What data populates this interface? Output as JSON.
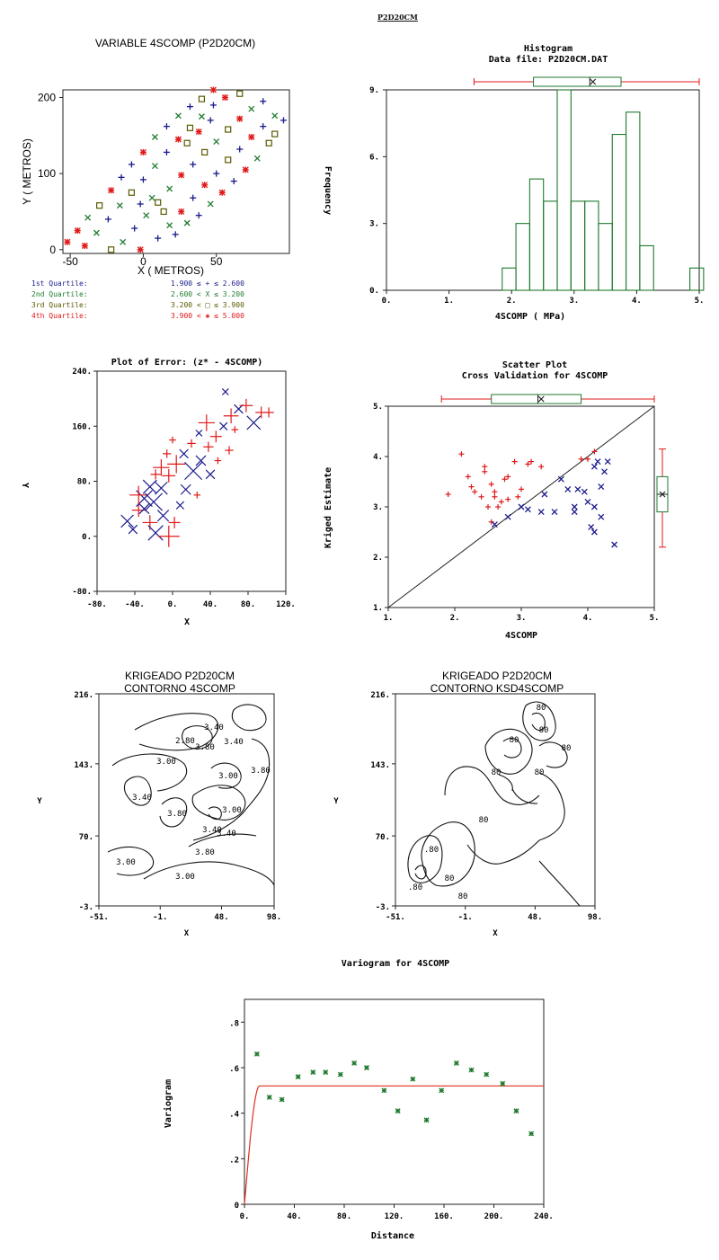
{
  "page_header": "P2D20CM",
  "chart_data": [
    {
      "id": "location_map",
      "type": "scatter",
      "title": "VARIABLE 4SCOMP (P2D20CM)",
      "xlabel": "X ( METROS)",
      "ylabel": "Y ( METROS)",
      "xlim": [
        -55,
        100
      ],
      "ylim": [
        -5,
        210
      ],
      "xticks": [
        "-50",
        "0",
        "50"
      ],
      "yticks": [
        "0",
        "100",
        "200"
      ],
      "legend": [
        {
          "label": "1st Quartile:",
          "range": "1.900 ≤ + ≤ 2.600",
          "color": "#1a1a8c",
          "marker": "+"
        },
        {
          "label": "2nd Quartile:",
          "range": "2.600 < X ≤ 3.200",
          "color": "#1f7a2e",
          "marker": "x"
        },
        {
          "label": "3rd Quartile:",
          "range": "3.200 < □ ≤ 3.900",
          "color": "#5a5a00",
          "marker": "square"
        },
        {
          "label": "4th Quartile:",
          "range": "3.900 < ✱ ≤ 5.000",
          "color": "#e01818",
          "marker": "star"
        }
      ],
      "points": [
        {
          "x": -52,
          "y": 10,
          "q": 4
        },
        {
          "x": -45,
          "y": 25,
          "q": 4
        },
        {
          "x": -38,
          "y": 42,
          "q": 2
        },
        {
          "x": -30,
          "y": 58,
          "q": 3
        },
        {
          "x": -22,
          "y": 78,
          "q": 4
        },
        {
          "x": -15,
          "y": 95,
          "q": 1
        },
        {
          "x": -8,
          "y": 112,
          "q": 1
        },
        {
          "x": 0,
          "y": 128,
          "q": 4
        },
        {
          "x": 8,
          "y": 148,
          "q": 2
        },
        {
          "x": 16,
          "y": 162,
          "q": 1
        },
        {
          "x": 24,
          "y": 176,
          "q": 2
        },
        {
          "x": 32,
          "y": 188,
          "q": 1
        },
        {
          "x": 40,
          "y": 198,
          "q": 3
        },
        {
          "x": 48,
          "y": 210,
          "q": 4
        },
        {
          "x": -40,
          "y": 5,
          "q": 4
        },
        {
          "x": -32,
          "y": 22,
          "q": 2
        },
        {
          "x": -24,
          "y": 40,
          "q": 1
        },
        {
          "x": -16,
          "y": 58,
          "q": 2
        },
        {
          "x": -8,
          "y": 75,
          "q": 3
        },
        {
          "x": 0,
          "y": 92,
          "q": 1
        },
        {
          "x": 8,
          "y": 110,
          "q": 2
        },
        {
          "x": 16,
          "y": 128,
          "q": 1
        },
        {
          "x": 24,
          "y": 145,
          "q": 4
        },
        {
          "x": 32,
          "y": 160,
          "q": 3
        },
        {
          "x": 40,
          "y": 175,
          "q": 2
        },
        {
          "x": 48,
          "y": 190,
          "q": 1
        },
        {
          "x": 56,
          "y": 200,
          "q": 4
        },
        {
          "x": 66,
          "y": 205,
          "q": 3
        },
        {
          "x": -22,
          "y": 0,
          "q": 3
        },
        {
          "x": -14,
          "y": 10,
          "q": 2
        },
        {
          "x": -6,
          "y": 28,
          "q": 1
        },
        {
          "x": 2,
          "y": 45,
          "q": 2
        },
        {
          "x": 10,
          "y": 62,
          "q": 3
        },
        {
          "x": 18,
          "y": 80,
          "q": 2
        },
        {
          "x": 26,
          "y": 98,
          "q": 4
        },
        {
          "x": 34,
          "y": 112,
          "q": 1
        },
        {
          "x": 42,
          "y": 128,
          "q": 3
        },
        {
          "x": 50,
          "y": 142,
          "q": 2
        },
        {
          "x": 58,
          "y": 158,
          "q": 3
        },
        {
          "x": 66,
          "y": 172,
          "q": 4
        },
        {
          "x": 74,
          "y": 185,
          "q": 2
        },
        {
          "x": 82,
          "y": 195,
          "q": 1
        },
        {
          "x": -2,
          "y": 0,
          "q": 4
        },
        {
          "x": 10,
          "y": 15,
          "q": 1
        },
        {
          "x": 18,
          "y": 32,
          "q": 2
        },
        {
          "x": 26,
          "y": 50,
          "q": 4
        },
        {
          "x": 34,
          "y": 68,
          "q": 1
        },
        {
          "x": 42,
          "y": 85,
          "q": 4
        },
        {
          "x": 50,
          "y": 100,
          "q": 1
        },
        {
          "x": 58,
          "y": 118,
          "q": 3
        },
        {
          "x": 66,
          "y": 132,
          "q": 1
        },
        {
          "x": 74,
          "y": 148,
          "q": 4
        },
        {
          "x": 82,
          "y": 162,
          "q": 1
        },
        {
          "x": 90,
          "y": 176,
          "q": 2
        },
        {
          "x": 90,
          "y": 152,
          "q": 3
        },
        {
          "x": 96,
          "y": 170,
          "q": 1
        },
        {
          "x": 86,
          "y": 140,
          "q": 3
        },
        {
          "x": 78,
          "y": 120,
          "q": 2
        },
        {
          "x": 70,
          "y": 105,
          "q": 4
        },
        {
          "x": 62,
          "y": 90,
          "q": 1
        },
        {
          "x": 54,
          "y": 75,
          "q": 4
        },
        {
          "x": 46,
          "y": 60,
          "q": 2
        },
        {
          "x": 38,
          "y": 45,
          "q": 1
        },
        {
          "x": 30,
          "y": 35,
          "q": 2
        },
        {
          "x": 22,
          "y": 20,
          "q": 1
        },
        {
          "x": 14,
          "y": 50,
          "q": 3
        },
        {
          "x": 6,
          "y": 68,
          "q": 2
        },
        {
          "x": -2,
          "y": 60,
          "q": 1
        },
        {
          "x": 30,
          "y": 140,
          "q": 3
        },
        {
          "x": 38,
          "y": 155,
          "q": 4
        },
        {
          "x": 46,
          "y": 170,
          "q": 1
        }
      ]
    },
    {
      "id": "histogram",
      "type": "bar",
      "title": "Histogram",
      "subtitle": "Data file: P2D20CM.DAT",
      "xlabel": "4SCOMP ( MPa)",
      "ylabel": "Frequency",
      "xlim": [
        0,
        5
      ],
      "ylim": [
        0,
        9
      ],
      "xticks": [
        "0.",
        "1.",
        "2.",
        "3.",
        "4.",
        "5."
      ],
      "yticks": [
        "0.",
        "3.",
        "6.",
        "9."
      ],
      "bin_width": 0.22,
      "bins": [
        {
          "x": 1.85,
          "count": 1
        },
        {
          "x": 2.07,
          "count": 3
        },
        {
          "x": 2.29,
          "count": 5
        },
        {
          "x": 2.51,
          "count": 4
        },
        {
          "x": 2.73,
          "count": 9
        },
        {
          "x": 2.95,
          "count": 4
        },
        {
          "x": 3.17,
          "count": 4
        },
        {
          "x": 3.39,
          "count": 3
        },
        {
          "x": 3.61,
          "count": 7
        },
        {
          "x": 3.83,
          "count": 8
        },
        {
          "x": 4.05,
          "count": 2
        },
        {
          "x": 4.27,
          "count": 0
        },
        {
          "x": 4.49,
          "count": 0
        },
        {
          "x": 4.85,
          "count": 1
        }
      ],
      "boxplot": {
        "min": 1.9,
        "q1": 2.65,
        "median": 3.25,
        "mean": 3.3,
        "q3": 4.0,
        "max": 5.0
      }
    },
    {
      "id": "error_plot",
      "type": "scatter",
      "title": "Plot of Error: (z* - 4SCOMP)",
      "xlabel": "X",
      "ylabel": "Y",
      "xlim": [
        -80,
        120
      ],
      "ylim": [
        -80,
        240
      ],
      "xticks": [
        "-80.",
        "-40.",
        "0.",
        "40.",
        "80.",
        "120."
      ],
      "yticks": [
        "-80.",
        "0.",
        "80.",
        "160.",
        "240."
      ],
      "points": [
        {
          "x": -48,
          "y": 22,
          "e": -0.8
        },
        {
          "x": -42,
          "y": 10,
          "e": -0.5
        },
        {
          "x": -36,
          "y": 38,
          "e": 0.6
        },
        {
          "x": -30,
          "y": 55,
          "e": -1.1
        },
        {
          "x": -24,
          "y": 72,
          "e": -0.9
        },
        {
          "x": -18,
          "y": 90,
          "e": 0.4
        },
        {
          "x": -12,
          "y": 100,
          "e": 0.8
        },
        {
          "x": -6,
          "y": 120,
          "e": 0.3
        },
        {
          "x": -36,
          "y": 60,
          "e": 0.9
        },
        {
          "x": -30,
          "y": 40,
          "e": -0.6
        },
        {
          "x": -24,
          "y": 20,
          "e": 0.7
        },
        {
          "x": -18,
          "y": 5,
          "e": -1.0
        },
        {
          "x": -10,
          "y": 30,
          "e": -0.7
        },
        {
          "x": -4,
          "y": 0,
          "e": 1.1
        },
        {
          "x": 2,
          "y": 20,
          "e": 0.5
        },
        {
          "x": 8,
          "y": 45,
          "e": -0.4
        },
        {
          "x": -20,
          "y": 50,
          "e": -1.2
        },
        {
          "x": -12,
          "y": 70,
          "e": -0.8
        },
        {
          "x": -4,
          "y": 88,
          "e": 0.6
        },
        {
          "x": 4,
          "y": 105,
          "e": 0.9
        },
        {
          "x": 12,
          "y": 120,
          "e": -0.5
        },
        {
          "x": 20,
          "y": 135,
          "e": 0.3
        },
        {
          "x": 28,
          "y": 150,
          "e": -0.3
        },
        {
          "x": 36,
          "y": 165,
          "e": 0.8
        },
        {
          "x": 22,
          "y": 95,
          "e": -1.2
        },
        {
          "x": 30,
          "y": 110,
          "e": -0.6
        },
        {
          "x": 38,
          "y": 130,
          "e": 0.4
        },
        {
          "x": 46,
          "y": 145,
          "e": 0.5
        },
        {
          "x": 54,
          "y": 160,
          "e": -0.4
        },
        {
          "x": 62,
          "y": 175,
          "e": 0.7
        },
        {
          "x": 70,
          "y": 185,
          "e": -0.5
        },
        {
          "x": 78,
          "y": 190,
          "e": 0.6
        },
        {
          "x": 86,
          "y": 165,
          "e": -0.9
        },
        {
          "x": 94,
          "y": 180,
          "e": 0.5
        },
        {
          "x": 102,
          "y": 180,
          "e": 0.4
        },
        {
          "x": 60,
          "y": 125,
          "e": 0.3
        },
        {
          "x": 40,
          "y": 90,
          "e": -0.5
        },
        {
          "x": 48,
          "y": 110,
          "e": 0.2
        },
        {
          "x": 56,
          "y": 210,
          "e": -0.3
        },
        {
          "x": 66,
          "y": 155,
          "e": 0.2
        },
        {
          "x": 14,
          "y": 68,
          "e": -0.6
        },
        {
          "x": 0,
          "y": 140,
          "e": 0.2
        },
        {
          "x": 26,
          "y": 60,
          "e": 0.2
        }
      ]
    },
    {
      "id": "cross_validation",
      "type": "scatter",
      "title": "Scatter Plot",
      "subtitle": "Cross Validation for 4SCOMP",
      "xlabel": "4SCOMP",
      "ylabel": "Kriged Estimate",
      "xlim": [
        1,
        5
      ],
      "ylim": [
        1,
        5
      ],
      "xticks": [
        "1.",
        "2.",
        "3.",
        "4.",
        "5."
      ],
      "yticks": [
        "1.",
        "2.",
        "3.",
        "4.",
        "5."
      ],
      "series": [
        {
          "name": "",
          "marker": "+",
          "color": "#e01818",
          "points": [
            [
              1.9,
              3.25
            ],
            [
              2.1,
              4.05
            ],
            [
              2.2,
              3.6
            ],
            [
              2.25,
              3.4
            ],
            [
              2.3,
              3.3
            ],
            [
              2.4,
              3.2
            ],
            [
              2.45,
              3.8
            ],
            [
              2.45,
              3.7
            ],
            [
              2.55,
              3.45
            ],
            [
              2.6,
              3.3
            ],
            [
              2.6,
              3.2
            ],
            [
              2.7,
              3.1
            ],
            [
              2.75,
              3.55
            ],
            [
              2.8,
              3.6
            ],
            [
              2.8,
              3.15
            ],
            [
              2.9,
              3.9
            ],
            [
              2.95,
              3.2
            ],
            [
              3.0,
              3.35
            ],
            [
              3.1,
              3.85
            ],
            [
              3.15,
              3.9
            ],
            [
              3.3,
              3.8
            ],
            [
              3.9,
              3.95
            ],
            [
              4.0,
              3.95
            ],
            [
              4.1,
              4.1
            ],
            [
              2.55,
              2.7
            ],
            [
              2.5,
              3.0
            ],
            [
              2.65,
              3.0
            ]
          ]
        },
        {
          "name": "",
          "marker": "x",
          "color": "#1a1a8c",
          "points": [
            [
              2.6,
              2.65
            ],
            [
              2.8,
              2.8
            ],
            [
              3.0,
              3.0
            ],
            [
              3.1,
              2.95
            ],
            [
              3.3,
              2.9
            ],
            [
              3.35,
              3.25
            ],
            [
              3.5,
              2.9
            ],
            [
              3.6,
              3.55
            ],
            [
              3.7,
              3.35
            ],
            [
              3.8,
              3.0
            ],
            [
              3.8,
              2.9
            ],
            [
              3.85,
              3.35
            ],
            [
              3.95,
              3.3
            ],
            [
              4.0,
              3.1
            ],
            [
              4.05,
              2.6
            ],
            [
              4.1,
              2.5
            ],
            [
              4.1,
              3.8
            ],
            [
              4.15,
              3.9
            ],
            [
              4.2,
              3.4
            ],
            [
              4.2,
              2.8
            ],
            [
              4.25,
              3.7
            ],
            [
              4.3,
              3.9
            ],
            [
              4.4,
              2.25
            ],
            [
              4.1,
              3.0
            ]
          ]
        }
      ],
      "boxplot_x": {
        "min": 1.9,
        "q1": 2.65,
        "median": 3.25,
        "q3": 4.0,
        "max": 5.0
      },
      "boxplot_y": {
        "min": 2.25,
        "q1": 2.9,
        "median": 3.25,
        "q3": 3.6,
        "max": 4.15
      }
    },
    {
      "id": "contour_estimate",
      "type": "heatmap",
      "title": "KRIGEADO P2D20CM",
      "subtitle": "CONTORNO 4SCOMP",
      "xlabel": "X",
      "ylabel": "Y",
      "xticks": [
        "-51.",
        "-1.",
        "48.",
        "98."
      ],
      "yticks": [
        "-3.",
        "70.",
        "143.",
        "216."
      ],
      "contour_labels": [
        "3.40",
        "3.80",
        "2.80",
        "3.40",
        "3.00",
        "3.00",
        "3.40",
        "3.80",
        "3.00",
        "3.80",
        "3.40",
        "3.80",
        "3.40",
        "3.00",
        "3.00"
      ]
    },
    {
      "id": "contour_std",
      "type": "heatmap",
      "title": "KRIGEADO P2D20CM",
      "subtitle": "CONTORNO KSD4SCOMP",
      "xlabel": "X",
      "ylabel": "Y",
      "xticks": [
        "-51.",
        "-1.",
        "48.",
        "98."
      ],
      "yticks": [
        "-3.",
        "70.",
        "143.",
        "216."
      ],
      "contour_labels": [
        "80",
        "80",
        "80",
        "80",
        "80",
        "80",
        "80",
        ".80",
        ".80",
        "80",
        "80"
      ]
    },
    {
      "id": "variogram",
      "type": "scatter",
      "title": "Variogram for 4SCOMP",
      "xlabel": "Distance",
      "ylabel": "Variogram",
      "xlim": [
        0,
        240
      ],
      "ylim": [
        0,
        0.9
      ],
      "xticks": [
        "0.",
        "40.",
        "80.",
        "120.",
        "160.",
        "200.",
        "240."
      ],
      "yticks": [
        "0",
        ".2",
        ".4",
        ".6",
        ".8"
      ],
      "experimental": [
        [
          10,
          0.66
        ],
        [
          20,
          0.47
        ],
        [
          30,
          0.46
        ],
        [
          43,
          0.56
        ],
        [
          55,
          0.58
        ],
        [
          65,
          0.58
        ],
        [
          77,
          0.57
        ],
        [
          88,
          0.62
        ],
        [
          98,
          0.6
        ],
        [
          112,
          0.5
        ],
        [
          123,
          0.41
        ],
        [
          135,
          0.55
        ],
        [
          146,
          0.37
        ],
        [
          158,
          0.5
        ],
        [
          170,
          0.62
        ],
        [
          182,
          0.59
        ],
        [
          194,
          0.57
        ],
        [
          207,
          0.53
        ],
        [
          218,
          0.41
        ],
        [
          230,
          0.31
        ]
      ],
      "model": {
        "type": "spherical",
        "nugget": 0.0,
        "sill": 0.52,
        "range": 12
      }
    }
  ]
}
